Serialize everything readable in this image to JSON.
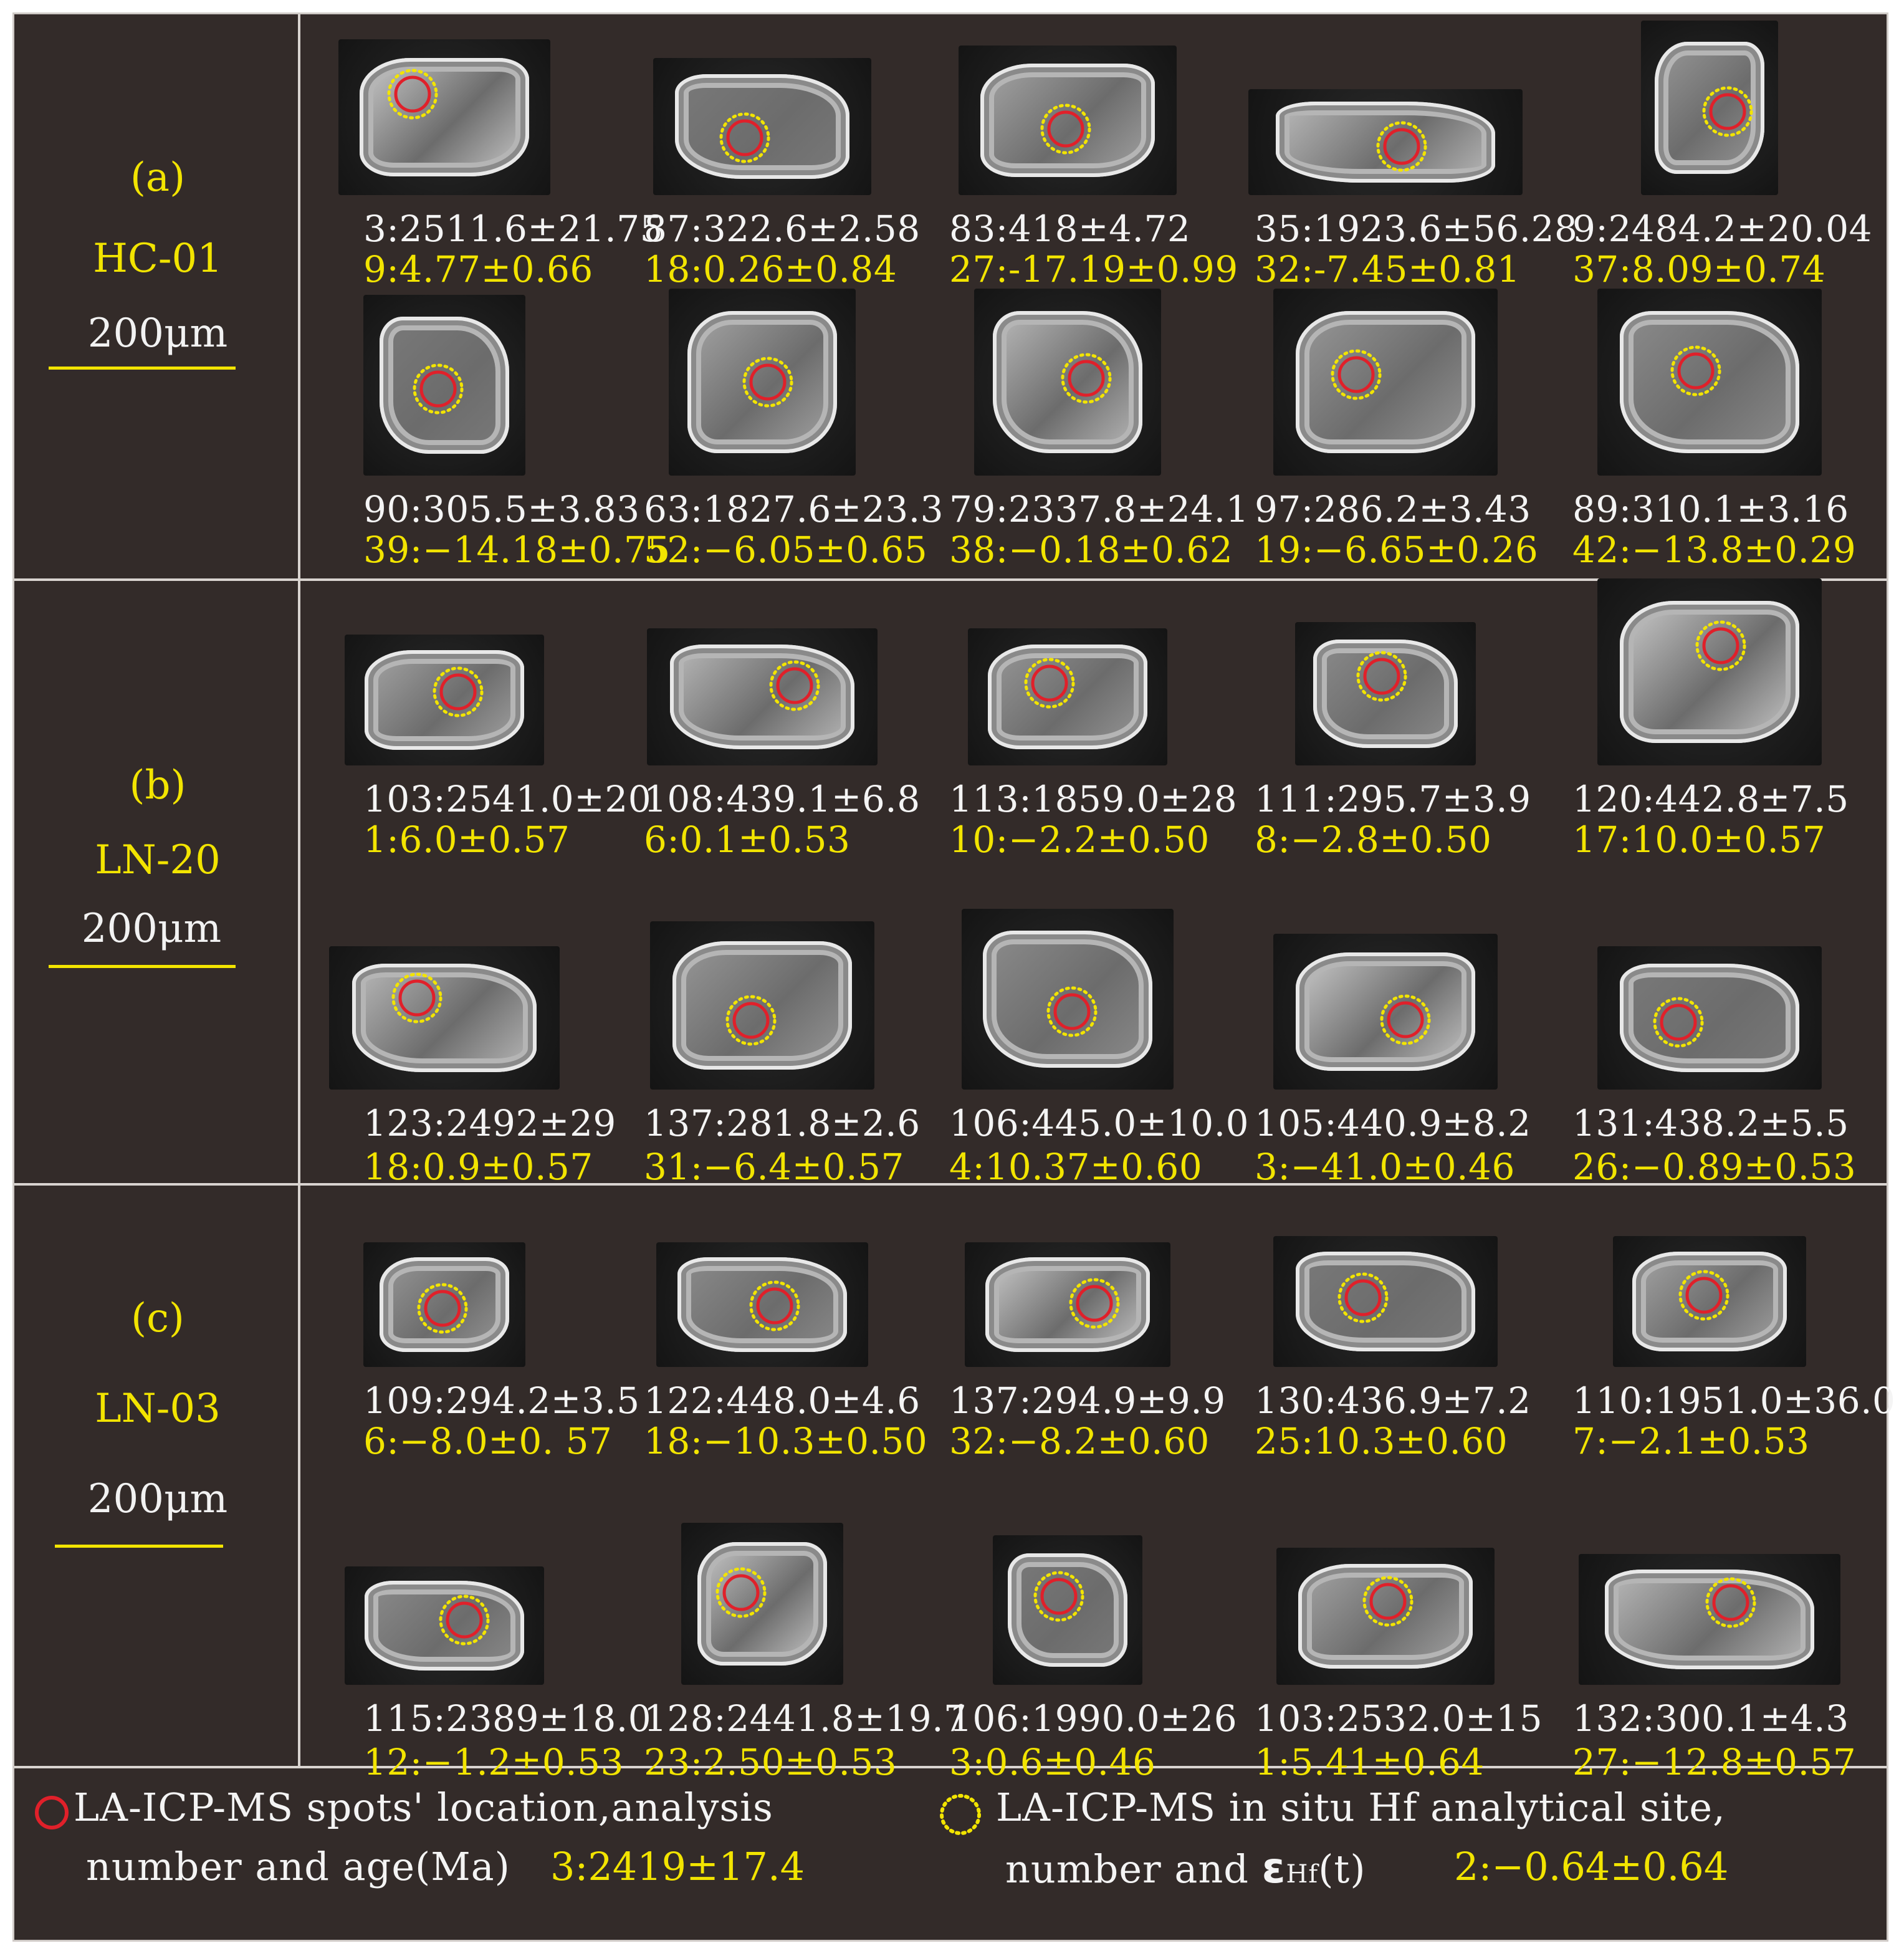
{
  "panels": [
    {
      "label": "(a)",
      "sample": "HC-01",
      "scale": "200μm",
      "rows": [
        [
          {
            "age": "3:2511.6±21.75",
            "hf": "9:4.77±0.66"
          },
          {
            "age": "87:322.6±2.58",
            "hf": "18:0.26±0.84"
          },
          {
            "age": "83:418±4.72",
            "hf": "27:-17.19±0.99"
          },
          {
            "age": "35:1923.6±56.28",
            "hf": "32:-7.45±0.81"
          },
          {
            "age": "9:2484.2±20.04",
            "hf": "37:8.09±0.74"
          }
        ],
        [
          {
            "age": "90:305.5±3.83",
            "hf": "39:−14.18±0.75"
          },
          {
            "age": "63:1827.6±23.3",
            "hf": "52:−6.05±0.65"
          },
          {
            "age": "79:2337.8±24.1",
            "hf": "38:−0.18±0.62"
          },
          {
            "age": "97:286.2±3.43",
            "hf": "19:−6.65±0.26"
          },
          {
            "age": "89:310.1±3.16",
            "hf": "42:−13.8±0.29"
          }
        ]
      ]
    },
    {
      "label": "(b)",
      "sample": "LN-20",
      "scale": "200μm",
      "rows": [
        [
          {
            "age": "103:2541.0±20",
            "hf": "1:6.0±0.57"
          },
          {
            "age": "108:439.1±6.8",
            "hf": "6:0.1±0.53"
          },
          {
            "age": "113:1859.0±28",
            "hf": "10:−2.2±0.50"
          },
          {
            "age": "111:295.7±3.9",
            "hf": "8:−2.8±0.50"
          },
          {
            "age": "120:442.8±7.5",
            "hf": "17:10.0±0.57"
          }
        ],
        [
          {
            "age": "123:2492±29",
            "hf": "18:0.9±0.57"
          },
          {
            "age": "137:281.8±2.6",
            "hf": "31:−6.4±0.57"
          },
          {
            "age": "106:445.0±10.0",
            "hf": "4:10.37±0.60"
          },
          {
            "age": "105:440.9±8.2",
            "hf": "3:−41.0±0.46"
          },
          {
            "age": "131:438.2±5.5",
            "hf": "26:−0.89±0.53"
          }
        ]
      ]
    },
    {
      "label": "(c)",
      "sample": "LN-03",
      "scale": "200μm",
      "rows": [
        [
          {
            "age": "109:294.2±3.5",
            "hf": "6:−8.0±0. 57"
          },
          {
            "age": "122:448.0±4.6",
            "hf": "18:−10.3±0.50"
          },
          {
            "age": "137:294.9±9.9",
            "hf": "32:−8.2±0.60"
          },
          {
            "age": "130:436.9±7.2",
            "hf": "25:10.3±0.60"
          },
          {
            "age": "110:1951.0±36.0",
            "hf": "7:−2.1±0.53"
          }
        ],
        [
          {
            "age": "115:2389±18.0",
            "hf": "12:−1.2±0.53"
          },
          {
            "age": "128:2441.8±19.7",
            "hf": "23:2.50±0.53"
          },
          {
            "age": "106:1990.0±26",
            "hf": "3:0.6±0.46"
          },
          {
            "age": "103:2532.0±15",
            "hf": "1:5.41±0.64"
          },
          {
            "age": "132:300.1±4.3",
            "hf": "27:−12.8±0.57"
          }
        ]
      ]
    }
  ],
  "legend": {
    "red_line1": "LA-ICP-MS spots' location,analysis",
    "red_line2": "number and age(Ma)",
    "red_example": "3:2419±17.4",
    "yellow_line1": "LA-ICP-MS in situ Hf analytical site,",
    "yellow_line2_prefix": "number and ",
    "yellow_symbol": "ε",
    "yellow_sub": "Hf",
    "yellow_suffix": "(t)",
    "yellow_example": "2:−0.64±0.64"
  },
  "colors": {
    "background": "#332b29",
    "ablation_spot": "#e0202a",
    "hf_spot": "#f2e400",
    "age_text": "#f4f4f4",
    "hf_text": "#f2e400",
    "divider": "#d9d4d0"
  }
}
